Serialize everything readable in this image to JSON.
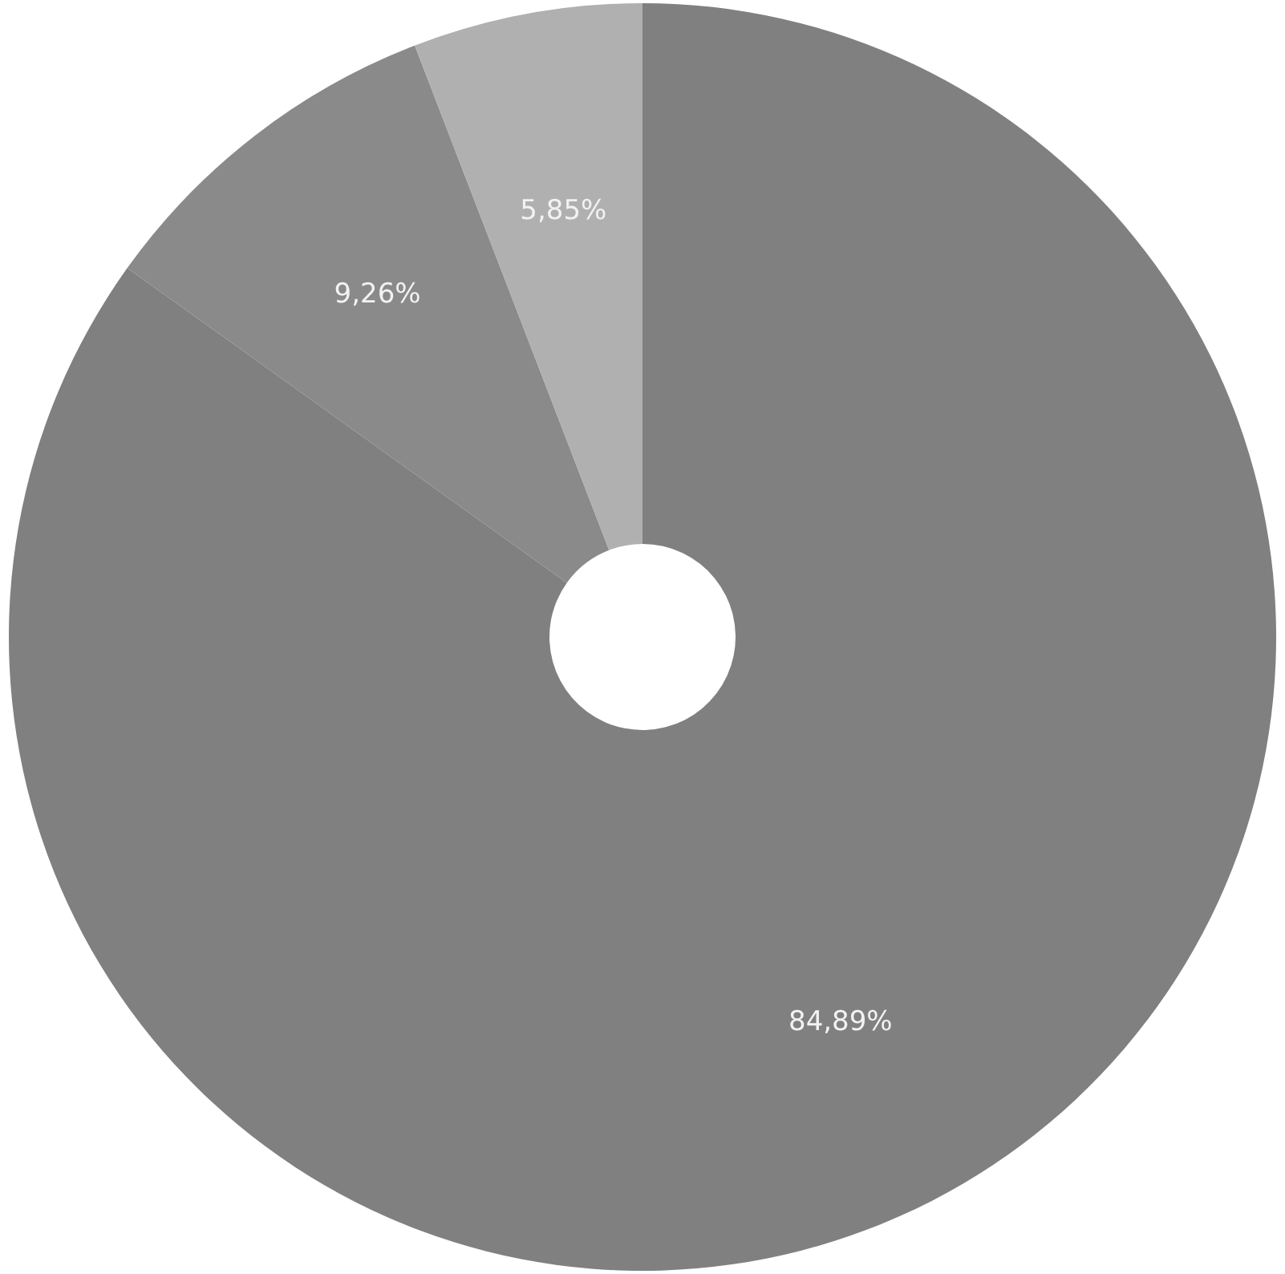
{
  "chart_data": {
    "type": "donut",
    "categories": [
      null,
      null,
      null
    ],
    "values": [
      84.89,
      9.26,
      5.85
    ],
    "colors": [
      "#808080",
      "#8a8a8a",
      "#b0b0b0"
    ],
    "value_labels": [
      "84,89%",
      "9,26%",
      "5,85%"
    ],
    "legend": false
  }
}
